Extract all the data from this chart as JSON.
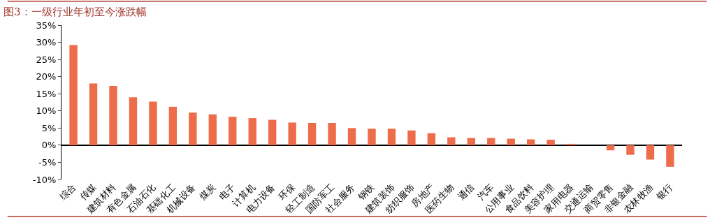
{
  "chart_data": {
    "type": "bar",
    "title": "图3：一级行业年初至今涨跌幅",
    "categories": [
      "综合",
      "传媒",
      "建筑材料",
      "有色金属",
      "石油石化",
      "基础化工",
      "机械设备",
      "煤炭",
      "电子",
      "计算机",
      "电力设备",
      "环保",
      "轻工制造",
      "国防军工",
      "社会服务",
      "钢铁",
      "建筑装饰",
      "纺织服饰",
      "房地产",
      "医药生物",
      "通信",
      "汽车",
      "公用事业",
      "食品饮料",
      "美容护理",
      "家用电器",
      "交通运输",
      "商贸零售",
      "非银金融",
      "农林牧渔",
      "银行"
    ],
    "values": [
      29.2,
      18.0,
      17.3,
      14.0,
      12.7,
      11.2,
      9.5,
      9.0,
      8.3,
      7.9,
      7.4,
      6.6,
      6.5,
      6.5,
      5.0,
      4.8,
      4.8,
      4.3,
      3.5,
      2.3,
      2.1,
      2.1,
      1.9,
      1.7,
      1.6,
      0.4,
      0,
      -1.5,
      -2.8,
      -4.2,
      -6.3
    ],
    "color": "#ed6d4a",
    "ylim": [
      -10,
      35
    ],
    "yticks": [
      {
        "value": -10,
        "label": "-10%"
      },
      {
        "value": -5,
        "label": "-5%"
      },
      {
        "value": 0,
        "label": "0%"
      },
      {
        "value": 5,
        "label": "5%"
      },
      {
        "value": 10,
        "label": "10%"
      },
      {
        "value": 15,
        "label": "15%"
      },
      {
        "value": 20,
        "label": "20%"
      },
      {
        "value": 25,
        "label": "25%"
      },
      {
        "value": 30,
        "label": "30%"
      },
      {
        "value": 35,
        "label": "35%"
      }
    ]
  }
}
